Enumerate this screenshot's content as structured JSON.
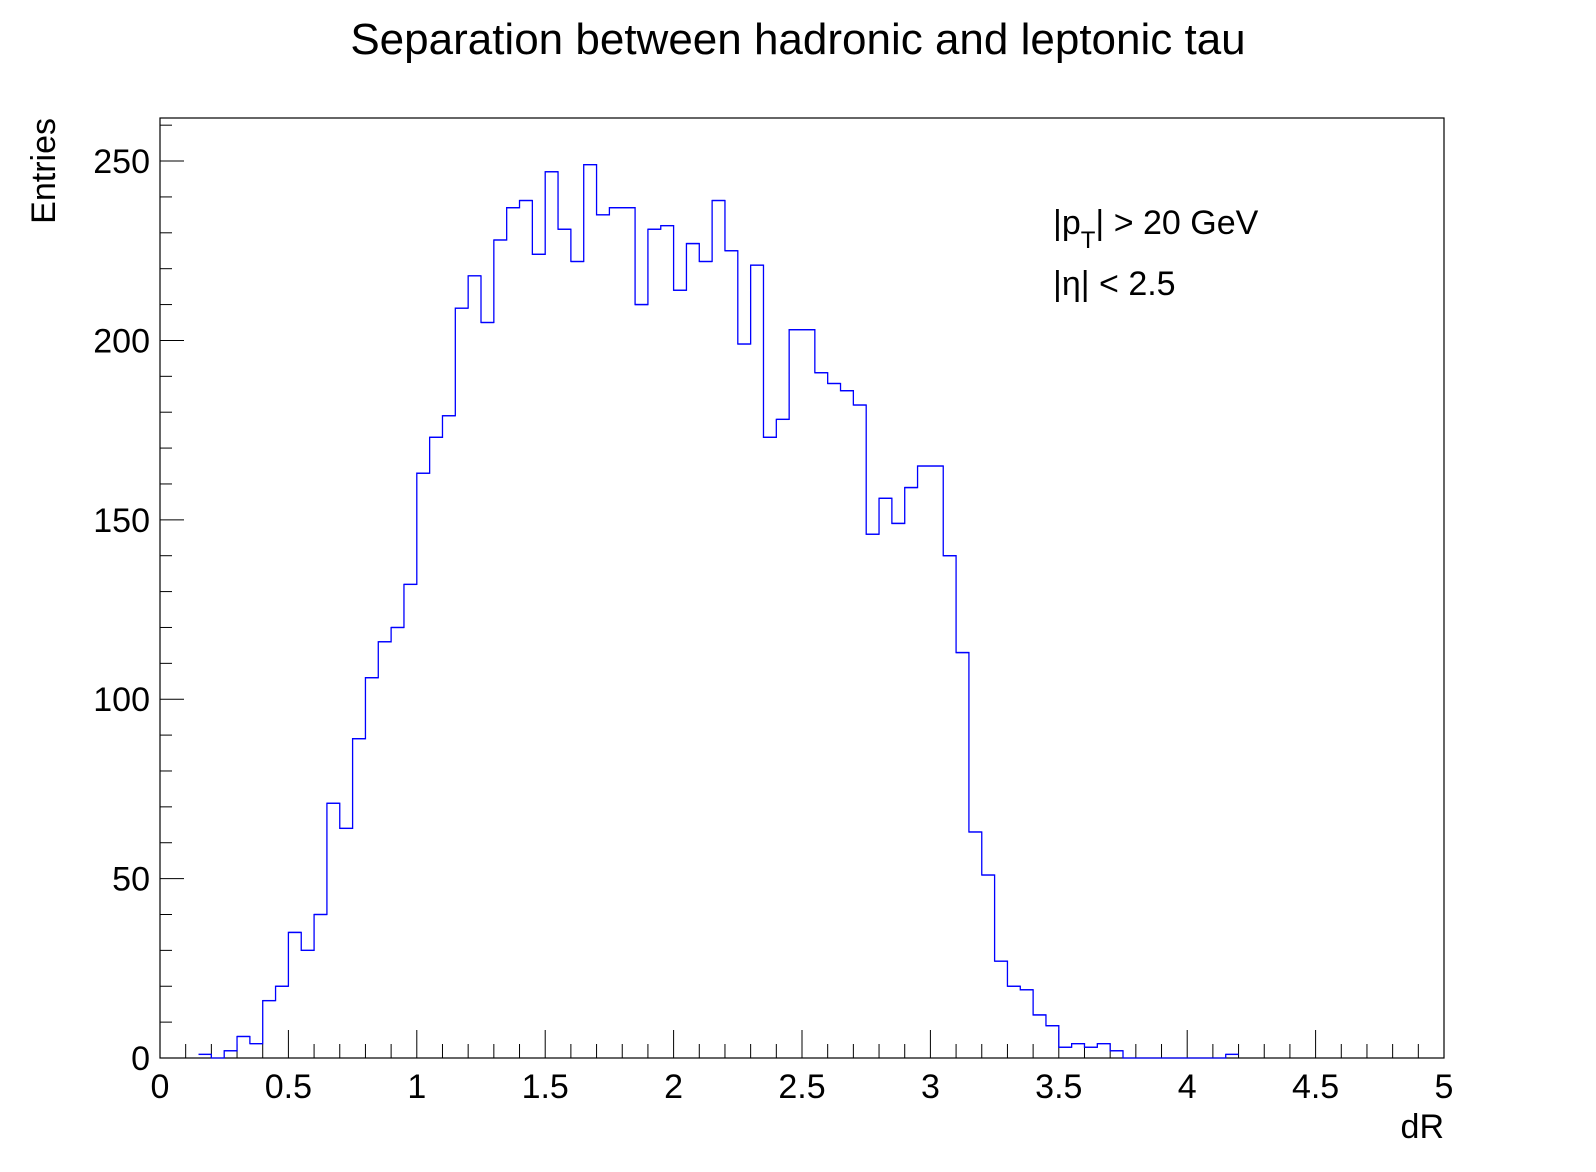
{
  "chart_data": {
    "type": "histogram",
    "title": "Separation between hadronic and leptonic tau",
    "xlabel": "dR",
    "ylabel": "Entries",
    "xlim": [
      0,
      5
    ],
    "ylim": [
      0,
      262
    ],
    "bin_width": 0.05,
    "x_ticks": [
      "0",
      "0.5",
      "1",
      "1.5",
      "2",
      "2.5",
      "3",
      "3.5",
      "4",
      "4.5",
      "5"
    ],
    "y_ticks": [
      "0",
      "50",
      "100",
      "150",
      "200",
      "250"
    ],
    "line_color": "#0000ff",
    "grid": false,
    "legend": "none",
    "annotations": {
      "pt_cut_prefix": "|p",
      "pt_cut_subscript": "T",
      "pt_cut_suffix": "| > 20 GeV",
      "eta_cut": "|η| < 2.5"
    },
    "bin_low_edges": [
      0.0,
      0.05,
      0.1,
      0.15,
      0.2,
      0.25,
      0.3,
      0.35,
      0.4,
      0.45,
      0.5,
      0.55,
      0.6,
      0.65,
      0.7,
      0.75,
      0.8,
      0.85,
      0.9,
      0.95,
      1.0,
      1.05,
      1.1,
      1.15,
      1.2,
      1.25,
      1.3,
      1.35,
      1.4,
      1.45,
      1.5,
      1.55,
      1.6,
      1.65,
      1.7,
      1.75,
      1.8,
      1.85,
      1.9,
      1.95,
      2.0,
      2.05,
      2.1,
      2.15,
      2.2,
      2.25,
      2.3,
      2.35,
      2.4,
      2.45,
      2.5,
      2.55,
      2.6,
      2.65,
      2.7,
      2.75,
      2.8,
      2.85,
      2.9,
      2.95,
      3.0,
      3.05,
      3.1,
      3.15,
      3.2,
      3.25,
      3.3,
      3.35,
      3.4,
      3.45,
      3.5,
      3.55,
      3.6,
      3.65,
      3.7,
      3.75,
      3.8,
      3.85,
      3.9,
      3.95,
      4.0,
      4.05,
      4.1,
      4.15,
      4.2,
      4.25,
      4.3,
      4.35,
      4.4,
      4.45,
      4.5,
      4.55,
      4.6,
      4.65,
      4.7,
      4.75,
      4.8,
      4.85,
      4.9,
      4.95
    ],
    "values": [
      0,
      0,
      0,
      1,
      0,
      2,
      6,
      4,
      16,
      20,
      35,
      30,
      40,
      71,
      64,
      89,
      106,
      116,
      120,
      132,
      163,
      173,
      179,
      209,
      218,
      205,
      228,
      237,
      239,
      224,
      247,
      231,
      222,
      249,
      235,
      237,
      237,
      210,
      231,
      232,
      214,
      227,
      222,
      239,
      225,
      199,
      221,
      173,
      178,
      203,
      203,
      191,
      188,
      186,
      182,
      146,
      156,
      149,
      159,
      165,
      165,
      140,
      113,
      63,
      51,
      27,
      20,
      19,
      12,
      9,
      3,
      4,
      3,
      4,
      2,
      0,
      0,
      0,
      0,
      0,
      0,
      0,
      0,
      1,
      0,
      0,
      0,
      0,
      0,
      0,
      0,
      0,
      0,
      0,
      0,
      0,
      0,
      0,
      0,
      0
    ]
  }
}
